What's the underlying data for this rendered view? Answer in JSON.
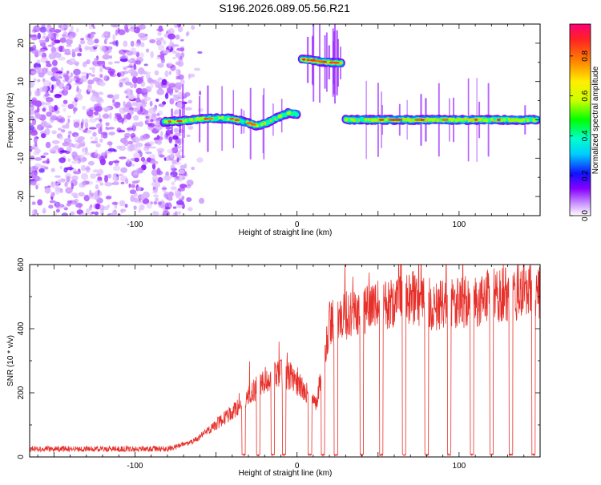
{
  "chart_data": [
    {
      "type": "heatmap",
      "title": "S196.2026.089.05.56.R21",
      "xlabel": "Height of straight line (km)",
      "ylabel": "Frequency (Hz)",
      "xlim": [
        -165,
        150
      ],
      "ylim": [
        -25,
        25
      ],
      "x_ticks": [
        -100,
        0,
        100
      ],
      "y_ticks": [
        -20,
        -10,
        0,
        10,
        20
      ],
      "colorbar": {
        "label": "Normalized spectral amplitude",
        "range": [
          0,
          0.96
        ],
        "ticks": [
          0.0,
          0.2,
          0.4,
          0.6,
          0.8
        ],
        "tick_labels": [
          "0.0",
          "0.2",
          "0.4",
          "0.6",
          "0.8"
        ]
      },
      "noise_region": {
        "x": [
          -165,
          -70
        ],
        "y": [
          -25,
          25
        ],
        "level": 0.1
      },
      "traces": [
        {
          "points": [
            [
              -82,
              -0.5
            ],
            [
              -70,
              -0.3
            ],
            [
              -60,
              0.2
            ],
            [
              -50,
              0.4
            ],
            [
              -40,
              0.3
            ],
            [
              -35,
              -0.3
            ],
            [
              -30,
              -0.8
            ],
            [
              -25,
              -1.5
            ],
            [
              -20,
              -1.0
            ],
            [
              -15,
              0.0
            ],
            [
              -10,
              1.0
            ],
            [
              -5,
              1.8
            ],
            [
              0,
              1.5
            ]
          ],
          "level": 0.5
        },
        {
          "points": [
            [
              3,
              15.8
            ],
            [
              10,
              15.5
            ],
            [
              15,
              15.2
            ],
            [
              20,
              15.0
            ],
            [
              28,
              14.8
            ]
          ],
          "level": 0.7
        },
        {
          "points": [
            [
              30,
              0.0
            ],
            [
              60,
              0.0
            ],
            [
              90,
              0.0
            ],
            [
              120,
              0.0
            ],
            [
              148,
              0.0
            ]
          ],
          "level": 0.6
        }
      ]
    },
    {
      "type": "line",
      "xlabel": "Height of straight line (km)",
      "ylabel": "SNR (10 * v/v)",
      "xlim": [
        -165,
        150
      ],
      "ylim": [
        0,
        600
      ],
      "x_ticks": [
        -100,
        0,
        100
      ],
      "y_ticks": [
        0,
        200,
        400,
        600
      ],
      "color": "#e8302a",
      "envelope": [
        [
          -165,
          25
        ],
        [
          -80,
          25
        ],
        [
          -65,
          45
        ],
        [
          -55,
          80
        ],
        [
          -45,
          120
        ],
        [
          -35,
          160
        ],
        [
          -28,
          200
        ],
        [
          -20,
          240
        ],
        [
          -10,
          260
        ],
        [
          -3,
          250
        ],
        [
          5,
          200
        ],
        [
          12,
          170
        ],
        [
          20,
          420
        ],
        [
          30,
          440
        ],
        [
          40,
          450
        ],
        [
          50,
          470
        ],
        [
          60,
          480
        ],
        [
          70,
          500
        ],
        [
          80,
          480
        ],
        [
          90,
          470
        ],
        [
          100,
          480
        ],
        [
          110,
          490
        ],
        [
          120,
          500
        ],
        [
          130,
          510
        ],
        [
          140,
          520
        ],
        [
          150,
          520
        ]
      ],
      "dropouts": [
        -33,
        -24,
        -15,
        -8,
        8,
        16,
        24,
        40,
        52,
        66,
        80,
        94,
        108,
        120,
        132,
        146
      ]
    }
  ]
}
